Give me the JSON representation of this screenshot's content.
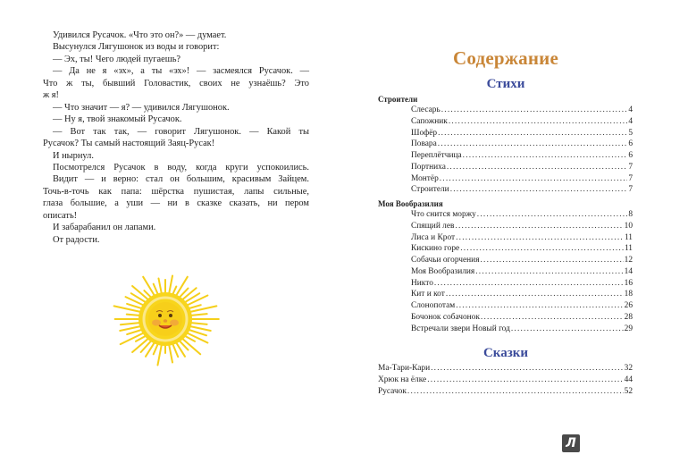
{
  "left_page": {
    "lines": [
      {
        "text": "Удивился Русачок. «Что это он?» — думает.",
        "indent": true,
        "justify": false
      },
      {
        "text": "Высунулся Лягушонок из воды и говорит:",
        "indent": true,
        "justify": false
      },
      {
        "text": "— Эх, ты! Чего людей пугаешь?",
        "indent": true,
        "justify": false
      },
      {
        "text": "— Да не я «эх», а ты «эх»! — засмеялся Русачок. —",
        "indent": true,
        "justify": true
      },
      {
        "text": "Что ж ты, бывший Головастик, своих не узнаёшь? Это",
        "indent": false,
        "justify": true
      },
      {
        "text": "ж я!",
        "indent": false,
        "justify": false
      },
      {
        "text": "— Что значит — я? — удивился Лягушонок.",
        "indent": true,
        "justify": false
      },
      {
        "text": "— Ну я, твой знакомый Русачок.",
        "indent": true,
        "justify": false
      },
      {
        "text": "— Вот так так, — говорит Лягушонок. — Какой ты",
        "indent": true,
        "justify": true
      },
      {
        "text": "Русачок? Ты самый настоящий Заяц-Русак!",
        "indent": false,
        "justify": false
      },
      {
        "text": "И нырнул.",
        "indent": true,
        "justify": false
      },
      {
        "text": "Посмотрелся Русачок в воду, когда круги успокоились.",
        "indent": true,
        "justify": true
      },
      {
        "text": "Видит — и верно: стал он большим, красивым Зайцем.",
        "indent": true,
        "justify": true
      },
      {
        "text": "Точь-в-точь как папа: шёрстка пушистая, лапы сильные,",
        "indent": false,
        "justify": true
      },
      {
        "text": "глаза большие, а уши — ни в сказке сказать, ни пером",
        "indent": false,
        "justify": true
      },
      {
        "text": "описать!",
        "indent": false,
        "justify": false
      },
      {
        "text": "И забарабанил он лапами.",
        "indent": true,
        "justify": false
      },
      {
        "text": "От радости.",
        "indent": true,
        "justify": false
      }
    ],
    "illustration": "smiling-sun"
  },
  "right_page": {
    "title": "Содержание",
    "title_color": "#c98637",
    "section_color": "#3b4b9b",
    "poems": {
      "heading": "Стихи",
      "groups": [
        {
          "name": "Строители",
          "entries": [
            {
              "title": "Слесарь",
              "page": "4"
            },
            {
              "title": "Сапожник",
              "page": "4"
            },
            {
              "title": "Шофёр",
              "page": "5"
            },
            {
              "title": "Повара",
              "page": "6"
            },
            {
              "title": "Переплётчица",
              "page": "6"
            },
            {
              "title": "Портниха",
              "page": "7"
            },
            {
              "title": "Монтёр",
              "page": "7"
            },
            {
              "title": "Строители",
              "page": "7"
            }
          ]
        },
        {
          "name": "Моя Вообразилия",
          "entries": [
            {
              "title": "Что снится моржу",
              "page": "8"
            },
            {
              "title": "Спящий лев",
              "page": "10"
            },
            {
              "title": "Лиса и Крот",
              "page": "11"
            },
            {
              "title": "Кискино горе",
              "page": "11"
            },
            {
              "title": "Собачьи огорчения",
              "page": "12"
            },
            {
              "title": "Моя Вообразилия",
              "page": "14"
            },
            {
              "title": "Никто",
              "page": "16"
            },
            {
              "title": "Кит и кот",
              "page": "18"
            },
            {
              "title": "Слонопотам",
              "page": "26"
            },
            {
              "title": "Бочонок собачонок",
              "page": "28"
            },
            {
              "title": "Встречали звери Новый год",
              "page": "29"
            }
          ]
        }
      ]
    },
    "tales": {
      "heading": "Сказки",
      "entries": [
        {
          "title": "Ма-Тари-Кари",
          "page": "32"
        },
        {
          "title": "Хрюк на ёлке",
          "page": "44"
        },
        {
          "title": "Русачок",
          "page": "52"
        }
      ]
    },
    "logo": {
      "text": "Л",
      "color": "#4a4a4a"
    }
  }
}
